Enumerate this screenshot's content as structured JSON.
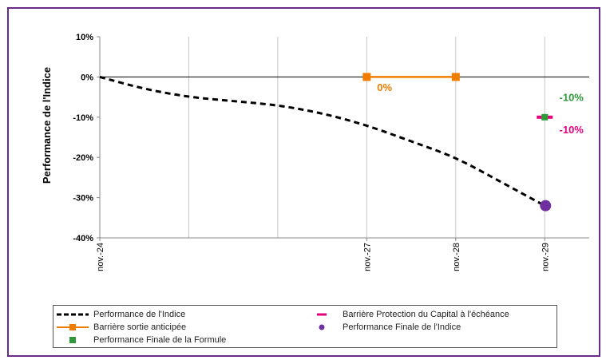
{
  "chart_data": {
    "type": "line",
    "ylabel": "Performance de l'Indice",
    "xlabel": "",
    "ylim": [
      -40,
      10
    ],
    "yticks": [
      10,
      0,
      -10,
      -20,
      -30,
      -40
    ],
    "ytick_labels": [
      "10%",
      "0%",
      "-10%",
      "-20%",
      "-30%",
      "-40%"
    ],
    "x_range": [
      0,
      5.5
    ],
    "x_tick_labels": [
      {
        "x": 0,
        "label": "nov.-24"
      },
      {
        "x": 3,
        "label": "nov.-27"
      },
      {
        "x": 4,
        "label": "nov.-28"
      },
      {
        "x": 5,
        "label": "nov.-29"
      }
    ],
    "x_gridlines": [
      1,
      2,
      3,
      4,
      5
    ],
    "grid": true,
    "series": [
      {
        "name": "Performance de l'Indice",
        "style": "dashed",
        "color": "#000000",
        "x": [
          0,
          0.5,
          1,
          1.5,
          2,
          2.5,
          3,
          3.5,
          4,
          4.5,
          5
        ],
        "y": [
          0,
          -3,
          -5,
          -6,
          -7,
          -9,
          -12,
          -16,
          -20,
          -26,
          -32
        ]
      },
      {
        "name": "Barrière sortie anticipée",
        "style": "line-square",
        "color": "#f07d00",
        "x": [
          3,
          4
        ],
        "y": [
          0,
          0
        ]
      },
      {
        "name": "Barrière Protection du Capital à l'échéance",
        "style": "dash-marker",
        "color": "#e6007e",
        "x": [
          5
        ],
        "y": [
          -10
        ]
      },
      {
        "name": "Performance Finale de l'Indice",
        "style": "circle",
        "color": "#7030a0",
        "x": [
          5
        ],
        "y": [
          -32
        ]
      },
      {
        "name": "Performance Finale de la Formule",
        "style": "square",
        "color": "#2e9a3a",
        "x": [
          5
        ],
        "y": [
          -10
        ]
      }
    ],
    "annotations": [
      {
        "text": "0%",
        "color": "#f07d00",
        "x": 3.2,
        "y": -3.5
      },
      {
        "text": "-10%",
        "color": "#2e9a3a",
        "x": 5.3,
        "y": -6
      },
      {
        "text": "-10%",
        "color": "#e6007e",
        "x": 5.3,
        "y": -14
      }
    ],
    "legend": {
      "placement": "bottom",
      "entries": [
        {
          "label": "Performance de l'Indice",
          "kind": "dashed",
          "color": "#000000"
        },
        {
          "label": "Barrière Protection du Capital à l'échéance",
          "kind": "dash",
          "color": "#e6007e"
        },
        {
          "label": "Barrière sortie anticipée",
          "kind": "line-square",
          "color": "#f07d00"
        },
        {
          "label": "Performance Finale de l'Indice",
          "kind": "circle",
          "color": "#7030a0"
        },
        {
          "label": "Performance Finale de la Formule",
          "kind": "square",
          "color": "#2e9a3a"
        }
      ]
    }
  }
}
